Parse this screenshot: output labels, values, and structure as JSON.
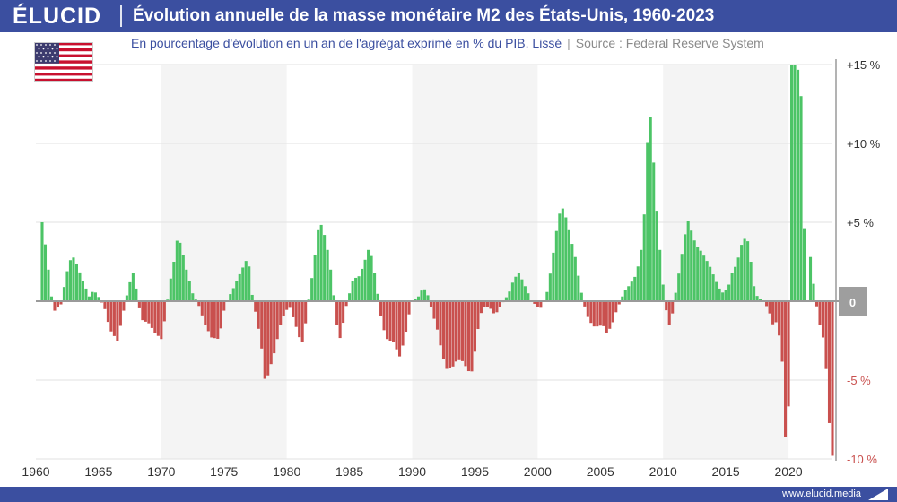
{
  "header": {
    "logo": "ÉLUCID",
    "title": "Évolution annuelle de la masse monétaire M2 des États-Unis, 1960-2023"
  },
  "subtitle": {
    "text": "En pourcentage d'évolution en un an de l'agrégat exprimé en % du PIB. Lissé",
    "separator": "|",
    "source": "Source : Federal Reserve System"
  },
  "footer": {
    "url": "www.elucid.media"
  },
  "icons": [
    "us-flag-icon",
    "elucid-mark-icon"
  ],
  "colors": {
    "header": "#3b4fa0",
    "positive": "#4cc466",
    "negative": "#c9504e",
    "zero_badge": "#9e9e9e",
    "band": "#f4f4f4"
  },
  "chart_data": {
    "type": "bar",
    "x_unit": "year (quarterly bars)",
    "xlim": [
      1960,
      2023.5
    ],
    "ylim": [
      -10,
      15
    ],
    "x_ticks": [
      1960,
      1965,
      1970,
      1975,
      1980,
      1985,
      1990,
      1995,
      2000,
      2005,
      2010,
      2015,
      2020
    ],
    "x_tick_labels": [
      "1960",
      "1965",
      "1970",
      "1975",
      "1980",
      "1985",
      "1990",
      "1995",
      "2000",
      "2005",
      "2010",
      "2015",
      "2020"
    ],
    "y_ticks": [
      15,
      10,
      5,
      0,
      -5,
      -10
    ],
    "y_tick_labels": [
      "+15 %",
      "+10 %",
      "+5 %",
      "0",
      "-5 %",
      "-10 %"
    ],
    "grid": true,
    "axis_position": "right",
    "shaded_decades": [
      [
        1970,
        1980
      ],
      [
        1990,
        2000
      ],
      [
        2010,
        2020
      ]
    ],
    "anchors": [
      [
        1960.0,
        0
      ],
      [
        1960.3,
        0
      ],
      [
        1960.5,
        5.0
      ],
      [
        1960.75,
        3.6
      ],
      [
        1961.0,
        2.0
      ],
      [
        1961.25,
        0.3
      ],
      [
        1961.5,
        -0.6
      ],
      [
        1962.0,
        -0.2
      ],
      [
        1962.25,
        0.9
      ],
      [
        1962.6,
        2.3
      ],
      [
        1962.9,
        2.9
      ],
      [
        1963.2,
        2.5
      ],
      [
        1963.6,
        1.6
      ],
      [
        1964.0,
        0.8
      ],
      [
        1964.25,
        0.3
      ],
      [
        1964.6,
        0.7
      ],
      [
        1964.9,
        0.4
      ],
      [
        1965.2,
        0
      ],
      [
        1965.5,
        -0.5
      ],
      [
        1965.9,
        -1.8
      ],
      [
        1966.5,
        -2.5
      ],
      [
        1966.9,
        -1.0
      ],
      [
        1967.2,
        0.2
      ],
      [
        1967.5,
        1.2
      ],
      [
        1967.8,
        1.9
      ],
      [
        1968.0,
        0.8
      ],
      [
        1968.2,
        -0.3
      ],
      [
        1968.5,
        -1.2
      ],
      [
        1969.0,
        -1.4
      ],
      [
        1969.5,
        -2.0
      ],
      [
        1970.0,
        -2.4
      ],
      [
        1970.4,
        -0.6
      ],
      [
        1970.6,
        0.8
      ],
      [
        1971.0,
        2.5
      ],
      [
        1971.3,
        4.1
      ],
      [
        1971.6,
        3.5
      ],
      [
        1972.0,
        2.0
      ],
      [
        1972.5,
        0.5
      ],
      [
        1973.0,
        -0.3
      ],
      [
        1973.5,
        -1.5
      ],
      [
        1974.0,
        -2.3
      ],
      [
        1974.6,
        -2.4
      ],
      [
        1975.0,
        -0.6
      ],
      [
        1975.4,
        0.3
      ],
      [
        1975.8,
        0.9
      ],
      [
        1976.3,
        1.8
      ],
      [
        1976.9,
        2.8
      ],
      [
        1977.1,
        1.6
      ],
      [
        1977.3,
        0
      ],
      [
        1977.6,
        -1.0
      ],
      [
        1978.0,
        -3.0
      ],
      [
        1978.3,
        -5.3
      ],
      [
        1978.6,
        -4.4
      ],
      [
        1979.0,
        -3.3
      ],
      [
        1979.5,
        -1.5
      ],
      [
        1979.8,
        -0.8
      ],
      [
        1980.2,
        -0.3
      ],
      [
        1980.7,
        -1.5
      ],
      [
        1981.2,
        -2.8
      ],
      [
        1981.5,
        -1.4
      ],
      [
        1981.8,
        0.4
      ],
      [
        1982.1,
        2.0
      ],
      [
        1982.5,
        4.5
      ],
      [
        1982.8,
        4.9
      ],
      [
        1983.2,
        3.5
      ],
      [
        1983.6,
        1.5
      ],
      [
        1983.8,
        0
      ],
      [
        1984.0,
        -1.5
      ],
      [
        1984.3,
        -2.5
      ],
      [
        1984.6,
        -0.8
      ],
      [
        1984.9,
        0.2
      ],
      [
        1985.3,
        1.4
      ],
      [
        1985.8,
        1.6
      ],
      [
        1986.2,
        2.5
      ],
      [
        1986.6,
        3.5
      ],
      [
        1987.0,
        1.8
      ],
      [
        1987.3,
        0.2
      ],
      [
        1987.6,
        -1.5
      ],
      [
        1988.0,
        -2.4
      ],
      [
        1988.5,
        -2.6
      ],
      [
        1989.0,
        -3.5
      ],
      [
        1989.4,
        -2.4
      ],
      [
        1989.7,
        -1.0
      ],
      [
        1990.0,
        0
      ],
      [
        1990.5,
        0.3
      ],
      [
        1990.9,
        0.9
      ],
      [
        1991.3,
        0.3
      ],
      [
        1991.6,
        -0.7
      ],
      [
        1992.0,
        -1.8
      ],
      [
        1992.3,
        -3.0
      ],
      [
        1992.7,
        -4.3
      ],
      [
        1993.2,
        -4.2
      ],
      [
        1993.6,
        -3.7
      ],
      [
        1994.0,
        -3.8
      ],
      [
        1994.4,
        -4.3
      ],
      [
        1994.7,
        -4.7
      ],
      [
        1995.0,
        -3.2
      ],
      [
        1995.4,
        -0.9
      ],
      [
        1995.8,
        -0.3
      ],
      [
        1996.3,
        -0.5
      ],
      [
        1996.6,
        -0.9
      ],
      [
        1996.9,
        -0.5
      ],
      [
        1997.3,
        0
      ],
      [
        1997.7,
        0.5
      ],
      [
        1998.1,
        1.4
      ],
      [
        1998.5,
        1.8
      ],
      [
        1998.8,
        1.3
      ],
      [
        1999.2,
        0.6
      ],
      [
        1999.5,
        0
      ],
      [
        1999.8,
        -0.2
      ],
      [
        2000.2,
        -0.5
      ],
      [
        2000.5,
        0
      ],
      [
        2000.8,
        0.7
      ],
      [
        2001.2,
        2.8
      ],
      [
        2001.6,
        5.0
      ],
      [
        2001.9,
        6.1
      ],
      [
        2002.3,
        5.2
      ],
      [
        2002.7,
        3.8
      ],
      [
        2003.0,
        2.8
      ],
      [
        2003.4,
        0.9
      ],
      [
        2003.7,
        -0.2
      ],
      [
        2004.0,
        -1.0
      ],
      [
        2004.4,
        -1.6
      ],
      [
        2004.8,
        -1.6
      ],
      [
        2005.2,
        -1.5
      ],
      [
        2005.5,
        -2.0
      ],
      [
        2005.9,
        -1.6
      ],
      [
        2006.2,
        -0.8
      ],
      [
        2006.6,
        0
      ],
      [
        2006.9,
        0.6
      ],
      [
        2007.3,
        1.0
      ],
      [
        2007.8,
        1.6
      ],
      [
        2008.2,
        2.8
      ],
      [
        2008.5,
        5.5
      ],
      [
        2008.8,
        11.0
      ],
      [
        2009.0,
        11.7
      ],
      [
        2009.3,
        8.2
      ],
      [
        2009.6,
        4.5
      ],
      [
        2009.9,
        2.0
      ],
      [
        2010.1,
        0.1
      ],
      [
        2010.3,
        -0.8
      ],
      [
        2010.6,
        -1.9
      ],
      [
        2010.8,
        -0.4
      ],
      [
        2011.1,
        1.0
      ],
      [
        2011.4,
        2.5
      ],
      [
        2011.7,
        4.0
      ],
      [
        2011.95,
        5.2
      ],
      [
        2012.2,
        4.6
      ],
      [
        2012.6,
        3.6
      ],
      [
        2013.0,
        3.2
      ],
      [
        2013.4,
        2.7
      ],
      [
        2013.8,
        2.1
      ],
      [
        2014.2,
        1.3
      ],
      [
        2014.5,
        0.8
      ],
      [
        2014.8,
        0.5
      ],
      [
        2015.2,
        0.9
      ],
      [
        2015.5,
        1.8
      ],
      [
        2015.9,
        2.4
      ],
      [
        2016.2,
        3.5
      ],
      [
        2016.6,
        4.1
      ],
      [
        2016.9,
        3.5
      ],
      [
        2017.1,
        1.5
      ],
      [
        2017.4,
        0.4
      ],
      [
        2017.7,
        0.2
      ],
      [
        2018.0,
        0
      ],
      [
        2018.4,
        -0.5
      ],
      [
        2018.8,
        -1.6
      ],
      [
        2019.1,
        -1.2
      ],
      [
        2019.3,
        -2.5
      ],
      [
        2019.6,
        -4.5
      ],
      [
        2019.8,
        -10.0
      ],
      [
        2019.95,
        -10.0
      ],
      [
        2020.1,
        0
      ],
      [
        2020.2,
        15.0
      ],
      [
        2020.45,
        15.0
      ],
      [
        2020.7,
        15.0
      ],
      [
        2021.0,
        13.0
      ],
      [
        2021.2,
        6.0
      ],
      [
        2021.4,
        0.5
      ],
      [
        2021.55,
        -0.3
      ],
      [
        2021.75,
        2.8
      ],
      [
        2021.9,
        2.0
      ],
      [
        2022.1,
        0.2
      ],
      [
        2022.3,
        -0.5
      ],
      [
        2022.6,
        -2.0
      ],
      [
        2022.9,
        -2.6
      ],
      [
        2023.1,
        -6.0
      ],
      [
        2023.3,
        -8.3
      ],
      [
        2023.5,
        -9.8
      ]
    ]
  }
}
